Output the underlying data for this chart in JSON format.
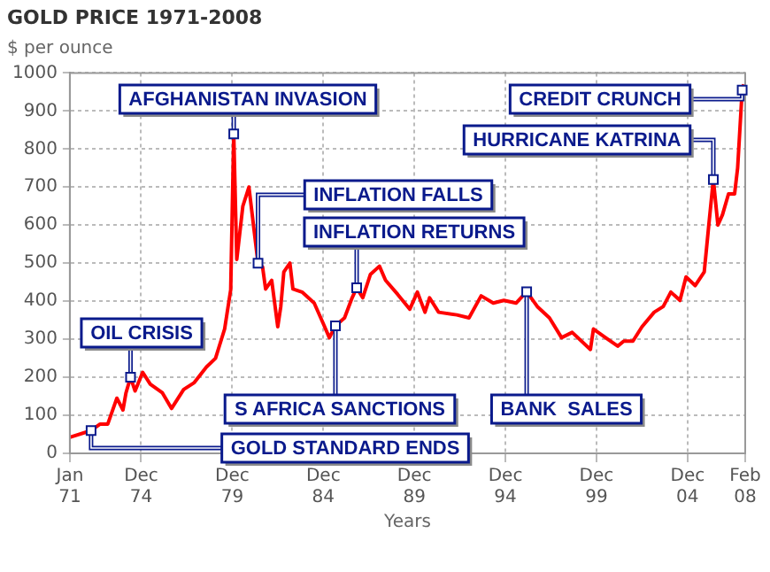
{
  "chart_data": {
    "type": "line",
    "title": "GOLD PRICE 1971-2008",
    "subtitle": "$ per ounce",
    "xlabel": "Years",
    "x": [
      "1971-01",
      "1972-03",
      "1972-09",
      "1973-02",
      "1973-08",
      "1973-12",
      "1974-02",
      "1974-05",
      "1974-08",
      "1975-01",
      "1975-06",
      "1976-02",
      "1976-08",
      "1977-04",
      "1977-11",
      "1978-07",
      "1979-01",
      "1979-07",
      "1979-11",
      "1980-01",
      "1980-03",
      "1980-07",
      "1980-11",
      "1981-02",
      "1981-05",
      "1981-08",
      "1981-10",
      "1982-02",
      "1982-06",
      "1982-08",
      "1982-10",
      "1983-02",
      "1983-04",
      "1983-10",
      "1984-06",
      "1984-12",
      "1985-04",
      "1985-08",
      "1986-02",
      "1986-07",
      "1986-10",
      "1987-02",
      "1987-07",
      "1988-01",
      "1988-05",
      "1989-01",
      "1989-09",
      "1990-02",
      "1990-07",
      "1990-10",
      "1991-04",
      "1992-04",
      "1992-12",
      "1993-08",
      "1994-04",
      "1994-11",
      "1995-07",
      "1996-02",
      "1996-09",
      "1997-05",
      "1998-01",
      "1998-08",
      "1999-08",
      "1999-10",
      "2000-06",
      "2001-02",
      "2001-06",
      "2001-12",
      "2002-06",
      "2003-02",
      "2003-08",
      "2004-01",
      "2004-07",
      "2004-11",
      "2005-05",
      "2005-11",
      "2006-02",
      "2006-05",
      "2006-08",
      "2006-11",
      "2007-03",
      "2007-07",
      "2007-09",
      "2007-12",
      "2008-01"
    ],
    "series": [
      {
        "color": "#ff0000",
        "values": [
          42,
          60,
          77,
          77,
          145,
          114,
          159,
          200,
          164,
          213,
          182,
          159,
          118,
          168,
          186,
          227,
          250,
          327,
          430,
          840,
          510,
          650,
          700,
          600,
          500,
          490,
          432,
          455,
          333,
          386,
          477,
          500,
          432,
          424,
          395,
          341,
          304,
          335,
          356,
          409,
          435,
          409,
          470,
          492,
          455,
          418,
          379,
          424,
          371,
          409,
          371,
          364,
          356,
          414,
          395,
          402,
          395,
          425,
          386,
          356,
          304,
          318,
          273,
          327,
          304,
          282,
          295,
          295,
          333,
          371,
          386,
          424,
          402,
          464,
          441,
          477,
          600,
          720,
          600,
          627,
          682,
          682,
          750,
          955,
          970
        ]
      }
    ],
    "xlim": [
      "1971-01",
      "2008-02"
    ],
    "xticks": [
      {
        "value": "1971-01",
        "label": "Jan 71"
      },
      {
        "value": "1974-12",
        "label": "Dec 74"
      },
      {
        "value": "1979-12",
        "label": "Dec 79"
      },
      {
        "value": "1984-12",
        "label": "Dec 84"
      },
      {
        "value": "1989-12",
        "label": "Dec 89"
      },
      {
        "value": "1994-12",
        "label": "Dec 94"
      },
      {
        "value": "1999-12",
        "label": "Dec 99"
      },
      {
        "value": "2004-12",
        "label": "Dec 04"
      },
      {
        "value": "2008-02",
        "label": "Feb 08"
      }
    ],
    "ylim": [
      0,
      1000
    ],
    "yticks": [
      0,
      100,
      200,
      300,
      400,
      500,
      600,
      700,
      800,
      900,
      1000
    ],
    "grid": true,
    "legend": false,
    "annotations": [
      {
        "text": "GOLD STANDARD ENDS",
        "x": "1972-03",
        "y": 60
      },
      {
        "text": "OIL CRISIS",
        "x": "1974-05",
        "y": 200
      },
      {
        "text": "AFGHANISTAN INVASION",
        "x": "1980-01",
        "y": 840
      },
      {
        "text": "INFLATION FALLS",
        "x": "1981-05",
        "y": 500
      },
      {
        "text": "S AFRICA SANCTIONS",
        "x": "1985-08",
        "y": 335
      },
      {
        "text": "INFLATION RETURNS",
        "x": "1986-10",
        "y": 435
      },
      {
        "text": "BANK  SALES",
        "x": "1996-02",
        "y": 425
      },
      {
        "text": "HURRICANE KATRINA",
        "x": "2006-05",
        "y": 720
      },
      {
        "text": "CREDIT CRUNCH",
        "x": "2007-12",
        "y": 955
      }
    ]
  }
}
